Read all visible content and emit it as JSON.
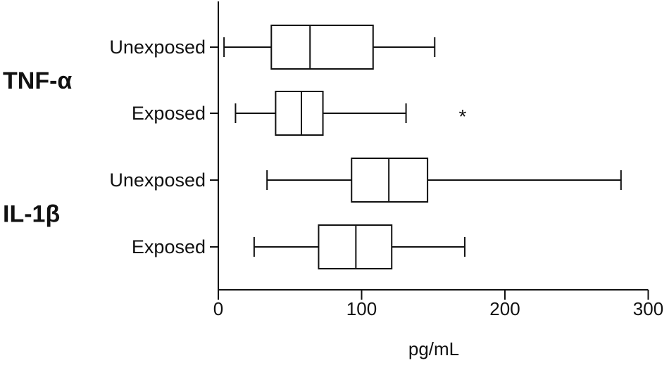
{
  "chart_data": {
    "type": "boxplot",
    "orientation": "horizontal",
    "xlabel": "pg/mL",
    "xlim": [
      0,
      300
    ],
    "xticks": [
      0,
      100,
      200,
      300
    ],
    "groups": [
      {
        "label": "TNF-α",
        "rows": [
          0,
          1
        ]
      },
      {
        "label": "IL-1β",
        "rows": [
          2,
          3
        ]
      }
    ],
    "boxes": [
      {
        "label": "Unexposed",
        "min": 4,
        "q1": 37,
        "median": 64,
        "q3": 108,
        "max": 151
      },
      {
        "label": "Exposed",
        "min": 12,
        "q1": 40,
        "median": 58,
        "q3": 73,
        "max": 131,
        "annotation": "*"
      },
      {
        "label": "Unexposed",
        "min": 34,
        "q1": 93,
        "median": 119,
        "q3": 146,
        "max": 281
      },
      {
        "label": "Exposed",
        "min": 25,
        "q1": 70,
        "median": 96,
        "q3": 121,
        "max": 172
      }
    ],
    "grid": false,
    "legend": "none"
  }
}
